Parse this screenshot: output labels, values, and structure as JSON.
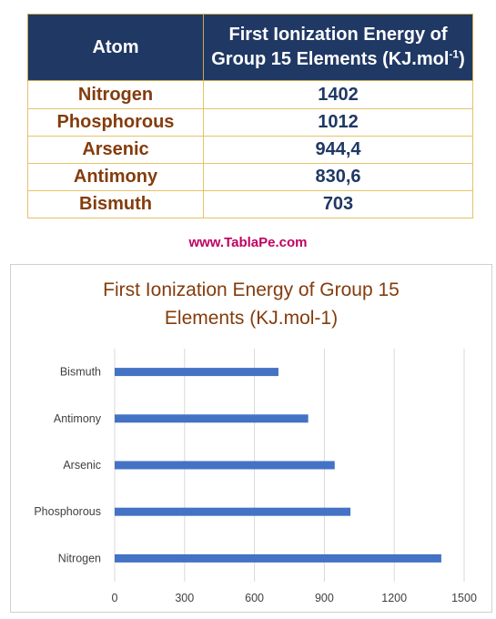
{
  "table": {
    "header_atom": "Atom",
    "header_energy_line1": "First Ionization Energy of",
    "header_energy_line2": "Group 15 Elements (KJ.mol",
    "header_energy_sup": "-1",
    "header_energy_close": ")",
    "rows": [
      {
        "atom": "Nitrogen",
        "energy": "1402"
      },
      {
        "atom": "Phosphorous",
        "energy": "1012"
      },
      {
        "atom": "Arsenic",
        "energy": "944,4"
      },
      {
        "atom": "Antimony",
        "energy": "830,6"
      },
      {
        "atom": "Bismuth",
        "energy": "703"
      }
    ]
  },
  "site": "www.TablaPe.com",
  "chart_data": {
    "type": "bar",
    "orientation": "horizontal",
    "title_line1": "First Ionization Energy of Group 15",
    "title_line2": "Elements (KJ.mol-1)",
    "categories": [
      "Nitrogen",
      "Phosphorous",
      "Arsenic",
      "Antimony",
      "Bismuth"
    ],
    "values": [
      1402,
      1012,
      944.4,
      830.6,
      703
    ],
    "xlim": [
      0,
      1500
    ],
    "xticks": [
      "0",
      "300",
      "600",
      "900",
      "1200",
      "1500"
    ],
    "xtick_values": [
      0,
      300,
      600,
      900,
      1200,
      1500
    ],
    "grid": "vertical",
    "legend": "none",
    "bar_color": "#4472c4"
  }
}
